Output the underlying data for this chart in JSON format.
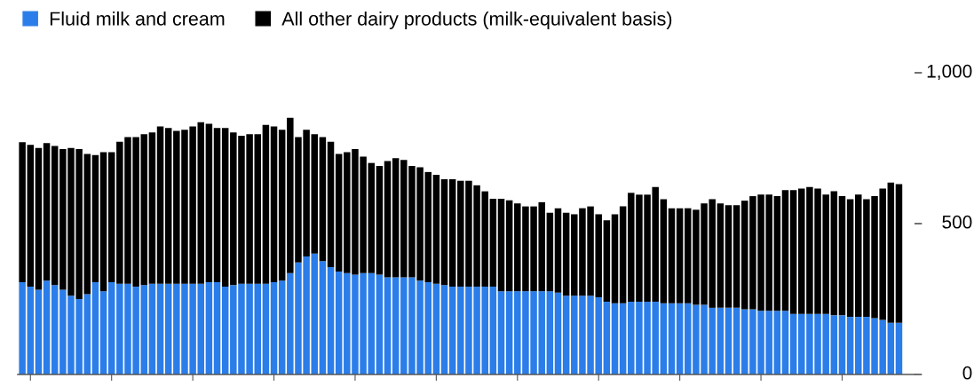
{
  "chart_data": {
    "type": "bar",
    "stacked": true,
    "legend": "top left",
    "grid": false,
    "categories": [
      null,
      null,
      null,
      null,
      null,
      null,
      null,
      null,
      null,
      null,
      null,
      null,
      null,
      null,
      null,
      null,
      null,
      null,
      null,
      null,
      null,
      null,
      null,
      null,
      null,
      null,
      null,
      null,
      null,
      null,
      null,
      null,
      null,
      null,
      null,
      null,
      null,
      null,
      null,
      null,
      null,
      null,
      null,
      null,
      null,
      null,
      null,
      null,
      null,
      null,
      null,
      null,
      null,
      null,
      null,
      null,
      null,
      null,
      null,
      null,
      null,
      null,
      null,
      null,
      null,
      null,
      null,
      null,
      null,
      null,
      null,
      null,
      null,
      null,
      null,
      null,
      null,
      null,
      null,
      null,
      null,
      null,
      null,
      null,
      null,
      null,
      null,
      null,
      null,
      null,
      null,
      null,
      null,
      null,
      null,
      null,
      null,
      null,
      null,
      null,
      null,
      null,
      null,
      null,
      null,
      null,
      null,
      null,
      null
    ],
    "ylim": [
      0,
      1000
    ],
    "yticks": [
      0,
      500,
      {
        "value": 1000,
        "label": "1,000"
      }
    ],
    "tick_labels": "y",
    "series": [
      {
        "name": "Fluid milk and cream",
        "color": "#2b7de9",
        "values": [
          306,
          291,
          281,
          311,
          296,
          281,
          261,
          250,
          266,
          306,
          276,
          306,
          301,
          301,
          291,
          296,
          301,
          301,
          301,
          301,
          301,
          301,
          301,
          306,
          306,
          291,
          296,
          301,
          301,
          301,
          301,
          306,
          311,
          336,
          371,
          391,
          401,
          376,
          356,
          341,
          336,
          331,
          336,
          336,
          331,
          322,
          322,
          322,
          322,
          311,
          306,
          301,
          296,
          291,
          291,
          291,
          291,
          291,
          291,
          276,
          276,
          276,
          276,
          276,
          276,
          276,
          271,
          261,
          261,
          261,
          261,
          256,
          241,
          236,
          236,
          241,
          241,
          241,
          241,
          236,
          236,
          236,
          236,
          231,
          231,
          221,
          221,
          221,
          221,
          216,
          216,
          211,
          211,
          211,
          211,
          201,
          201,
          201,
          201,
          201,
          196,
          196,
          191,
          191,
          191,
          187,
          181,
          171,
          171
        ]
      },
      {
        "name": "All other dairy products (milk-equivalent basis)",
        "color": "#000000",
        "values": [
          464,
          470,
          470,
          456,
          461,
          466,
          490,
          497,
          465,
          421,
          461,
          431,
          470,
          486,
          496,
          500,
          501,
          521,
          516,
          506,
          510,
          521,
          535,
          525,
          511,
          526,
          506,
          490,
          495,
          495,
          526,
          516,
          500,
          515,
          416,
          420,
          395,
          411,
          415,
          390,
          401,
          416,
          386,
          365,
          360,
          385,
          395,
          389,
          369,
          376,
          365,
          361,
          351,
          356,
          351,
          351,
          336,
          316,
          291,
          306,
          301,
          291,
          281,
          281,
          295,
          260,
          280,
          275,
          270,
          290,
          296,
          275,
          270,
          295,
          321,
          361,
          355,
          355,
          380,
          345,
          315,
          315,
          315,
          315,
          336,
          360,
          346,
          340,
          340,
          360,
          375,
          385,
          385,
          380,
          400,
          410,
          415,
          420,
          415,
          395,
          411,
          395,
          390,
          405,
          390,
          404,
          435,
          465,
          460
        ]
      }
    ]
  }
}
